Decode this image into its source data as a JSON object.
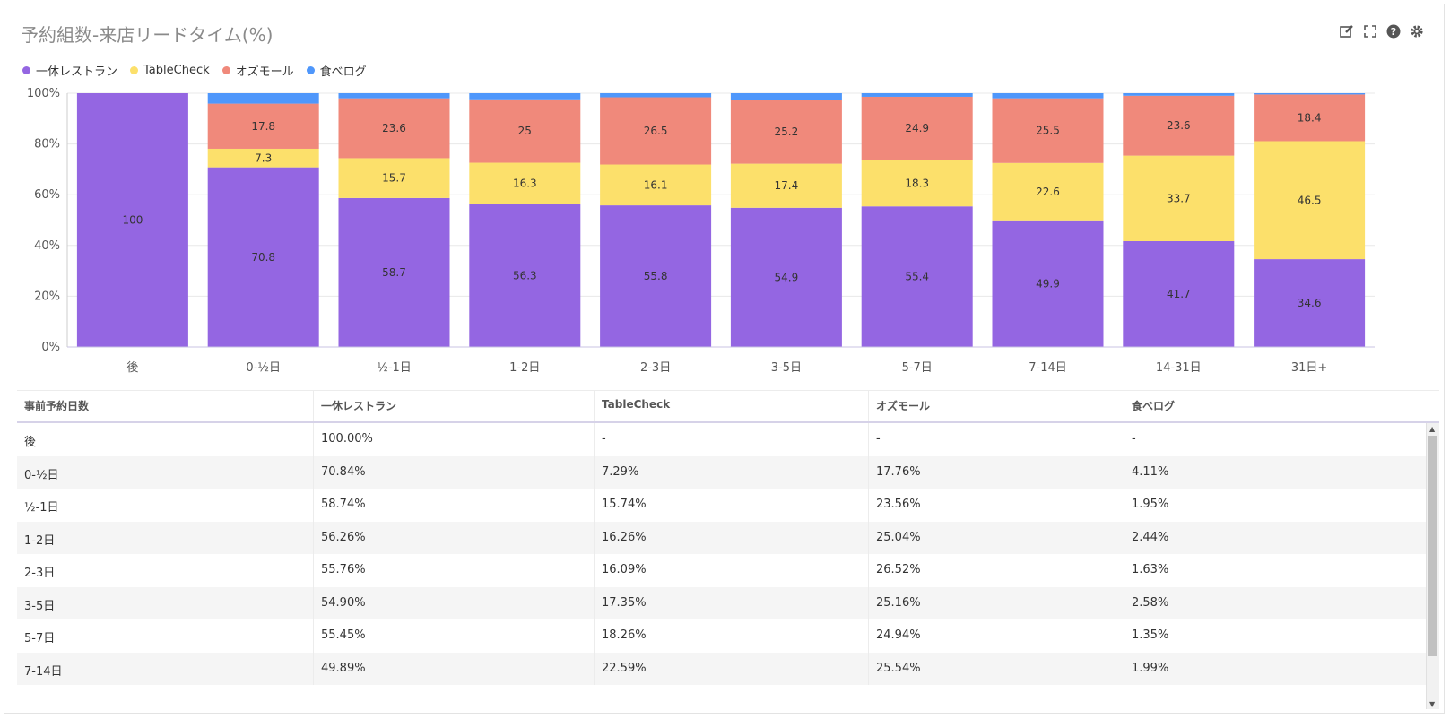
{
  "header": {
    "title": "予約組数-来店リードタイム(%)"
  },
  "toolbar": {
    "icons": [
      "edit-icon",
      "fullscreen-icon",
      "help-icon",
      "gear-icon"
    ]
  },
  "colors": {
    "series": [
      "#9466e2",
      "#fce06b",
      "#f0897b",
      "#4f97fb"
    ]
  },
  "chart_data": {
    "type": "bar",
    "stacked": true,
    "normalized": true,
    "legend_position": "top-left",
    "categories": [
      "後",
      "0-½日",
      "½-1日",
      "1-2日",
      "2-3日",
      "3-5日",
      "5-7日",
      "7-14日",
      "14-31日",
      "31日+"
    ],
    "series": [
      {
        "name": "一休レストラン",
        "values": [
          100,
          70.8,
          58.7,
          56.3,
          55.8,
          54.9,
          55.4,
          49.9,
          41.7,
          34.6
        ]
      },
      {
        "name": "TableCheck",
        "values": [
          0,
          7.3,
          15.7,
          16.3,
          16.1,
          17.4,
          18.3,
          22.6,
          33.7,
          46.5
        ]
      },
      {
        "name": "オズモール",
        "values": [
          0,
          17.8,
          23.6,
          25,
          26.5,
          25.2,
          24.9,
          25.5,
          23.6,
          18.4
        ]
      },
      {
        "name": "食べログ",
        "values": [
          0,
          4.1,
          2,
          2.4,
          1.6,
          2.6,
          1.4,
          2,
          1,
          0.5
        ]
      }
    ],
    "data_labels": [
      [
        "100",
        "70.8",
        "58.7",
        "56.3",
        "55.8",
        "54.9",
        "55.4",
        "49.9",
        "41.7",
        "34.6"
      ],
      [
        "",
        "7.3",
        "15.7",
        "16.3",
        "16.1",
        "17.4",
        "18.3",
        "22.6",
        "33.7",
        "46.5"
      ],
      [
        "",
        "17.8",
        "23.6",
        "25",
        "26.5",
        "25.2",
        "24.9",
        "25.5",
        "23.6",
        "18.4"
      ],
      [
        "",
        "",
        "",
        "",
        "",
        "",
        "",
        "",
        "",
        ""
      ]
    ],
    "y_ticks": [
      "0%",
      "20%",
      "40%",
      "60%",
      "80%",
      "100%"
    ],
    "ylim": [
      0,
      100
    ],
    "grid": true
  },
  "table": {
    "headers": [
      "事前予約日数",
      "一休レストラン",
      "TableCheck",
      "オズモール",
      "食べログ"
    ],
    "rows": [
      [
        "後",
        "100.00%",
        "-",
        "-",
        "-"
      ],
      [
        "0-½日",
        "70.84%",
        "7.29%",
        "17.76%",
        "4.11%"
      ],
      [
        "½-1日",
        "58.74%",
        "15.74%",
        "23.56%",
        "1.95%"
      ],
      [
        "1-2日",
        "56.26%",
        "16.26%",
        "25.04%",
        "2.44%"
      ],
      [
        "2-3日",
        "55.76%",
        "16.09%",
        "26.52%",
        "1.63%"
      ],
      [
        "3-5日",
        "54.90%",
        "17.35%",
        "25.16%",
        "2.58%"
      ],
      [
        "5-7日",
        "55.45%",
        "18.26%",
        "24.94%",
        "1.35%"
      ],
      [
        "7-14日",
        "49.89%",
        "22.59%",
        "25.54%",
        "1.99%"
      ]
    ]
  }
}
